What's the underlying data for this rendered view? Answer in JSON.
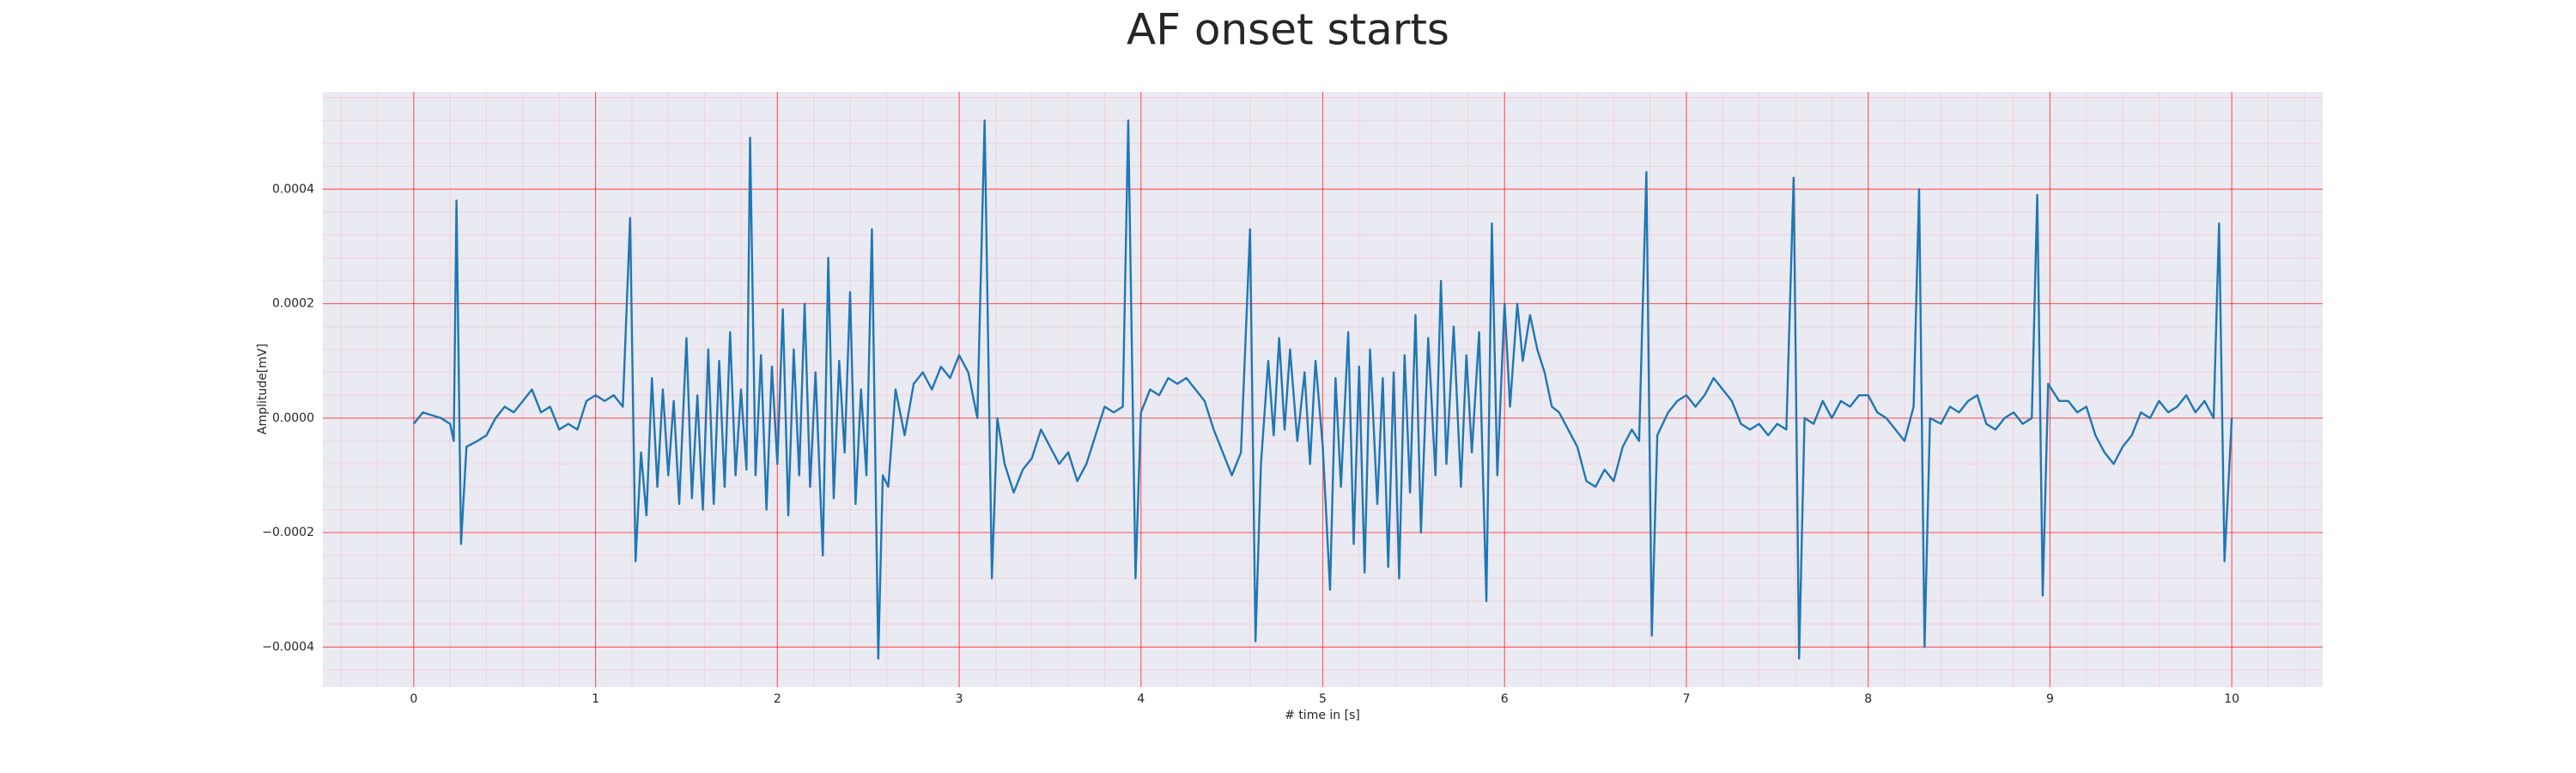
{
  "chart_data": {
    "type": "line",
    "title": "AF onset starts",
    "xlabel": "# time in [s]",
    "ylabel": "Amplitude[mV]",
    "xlim": [
      -0.5,
      10.5
    ],
    "ylim": [
      -0.00047,
      0.00057
    ],
    "xticks": [
      0,
      1,
      2,
      3,
      4,
      5,
      6,
      7,
      8,
      9,
      10
    ],
    "yticks": [
      {
        "value": -0.0004,
        "label": "−0.0004"
      },
      {
        "value": -0.0002,
        "label": "−0.0002"
      },
      {
        "value": 0,
        "label": "0.0000"
      },
      0.0002,
      0.0004
    ],
    "grid": true,
    "minor_grid": true,
    "series": [
      {
        "color": "#1f77b4",
        "x": [
          0,
          0.05,
          0.1,
          0.15,
          0.2,
          0.22,
          0.235,
          0.26,
          0.29,
          0.35,
          0.4,
          0.45,
          0.5,
          0.55,
          0.6,
          0.65,
          0.7,
          0.75,
          0.8,
          0.85,
          0.9,
          0.95,
          1.0,
          1.05,
          1.1,
          1.15,
          1.19,
          1.22,
          1.25,
          1.28,
          1.31,
          1.34,
          1.37,
          1.4,
          1.43,
          1.46,
          1.5,
          1.53,
          1.56,
          1.59,
          1.62,
          1.65,
          1.68,
          1.71,
          1.74,
          1.77,
          1.8,
          1.83,
          1.85,
          1.88,
          1.91,
          1.94,
          1.97,
          2.0,
          2.03,
          2.06,
          2.09,
          2.12,
          2.15,
          2.18,
          2.21,
          2.25,
          2.28,
          2.31,
          2.34,
          2.37,
          2.4,
          2.43,
          2.46,
          2.49,
          2.52,
          2.555,
          2.58,
          2.61,
          2.65,
          2.7,
          2.75,
          2.8,
          2.85,
          2.9,
          2.95,
          3.0,
          3.05,
          3.1,
          3.14,
          3.18,
          3.21,
          3.25,
          3.3,
          3.35,
          3.4,
          3.45,
          3.5,
          3.55,
          3.6,
          3.65,
          3.7,
          3.75,
          3.8,
          3.85,
          3.9,
          3.93,
          3.97,
          4.0,
          4.05,
          4.1,
          4.15,
          4.2,
          4.25,
          4.3,
          4.35,
          4.4,
          4.45,
          4.5,
          4.55,
          4.6,
          4.63,
          4.66,
          4.7,
          4.73,
          4.76,
          4.79,
          4.82,
          4.86,
          4.9,
          4.93,
          4.96,
          5.0,
          5.04,
          5.07,
          5.1,
          5.14,
          5.17,
          5.2,
          5.23,
          5.26,
          5.3,
          5.33,
          5.36,
          5.39,
          5.42,
          5.45,
          5.48,
          5.51,
          5.54,
          5.58,
          5.62,
          5.65,
          5.68,
          5.72,
          5.76,
          5.79,
          5.82,
          5.86,
          5.9,
          5.93,
          5.96,
          6.0,
          6.03,
          6.07,
          6.1,
          6.14,
          6.18,
          6.22,
          6.26,
          6.3,
          6.35,
          6.4,
          6.45,
          6.5,
          6.55,
          6.6,
          6.65,
          6.7,
          6.74,
          6.78,
          6.81,
          6.84,
          6.9,
          6.95,
          7.0,
          7.05,
          7.1,
          7.15,
          7.2,
          7.25,
          7.3,
          7.35,
          7.4,
          7.45,
          7.5,
          7.55,
          7.59,
          7.62,
          7.65,
          7.7,
          7.75,
          7.8,
          7.85,
          7.9,
          7.95,
          8.0,
          8.05,
          8.1,
          8.15,
          8.2,
          8.25,
          8.28,
          8.31,
          8.34,
          8.4,
          8.45,
          8.5,
          8.55,
          8.6,
          8.65,
          8.7,
          8.75,
          8.8,
          8.85,
          8.9,
          8.93,
          8.96,
          8.99,
          9.05,
          9.1,
          9.15,
          9.2,
          9.25,
          9.3,
          9.35,
          9.4,
          9.45,
          9.5,
          9.55,
          9.6,
          9.65,
          9.7,
          9.75,
          9.8,
          9.85,
          9.9,
          9.93,
          9.96,
          10.0
        ],
        "values": [
          -1e-05,
          1e-05,
          5e-06,
          0,
          -1e-05,
          -4e-05,
          0.00038,
          -0.00022,
          -5e-05,
          -4e-05,
          -3e-05,
          0,
          2e-05,
          1e-05,
          3e-05,
          5e-05,
          1e-05,
          2e-05,
          -2e-05,
          -1e-05,
          -2e-05,
          3e-05,
          4e-05,
          3e-05,
          4e-05,
          2e-05,
          0.00035,
          -0.00025,
          -6e-05,
          -0.00017,
          7e-05,
          -0.00012,
          5e-05,
          -0.0001,
          3e-05,
          -0.00015,
          0.00014,
          -0.00014,
          4e-05,
          -0.00016,
          0.00012,
          -0.00015,
          0.0001,
          -0.00012,
          0.00015,
          -0.0001,
          5e-05,
          -9e-05,
          0.00049,
          -0.0001,
          0.00011,
          -0.00016,
          9e-05,
          -8e-05,
          0.00019,
          -0.00017,
          0.00012,
          -0.0001,
          0.0002,
          -0.00012,
          8e-05,
          -0.00024,
          0.00028,
          -0.00014,
          0.0001,
          -6e-05,
          0.00022,
          -0.00015,
          5e-05,
          -0.0001,
          0.00033,
          -0.00042,
          -0.0001,
          -0.00012,
          5e-05,
          -3e-05,
          6e-05,
          8e-05,
          5e-05,
          9e-05,
          7e-05,
          0.00011,
          8e-05,
          0,
          0.00052,
          -0.00028,
          0,
          -8e-05,
          -0.00013,
          -9e-05,
          -7e-05,
          -2e-05,
          -5e-05,
          -8e-05,
          -6e-05,
          -0.00011,
          -8e-05,
          -3e-05,
          2e-05,
          1e-05,
          2e-05,
          0.00052,
          -0.00028,
          1e-05,
          5e-05,
          4e-05,
          7e-05,
          6e-05,
          7e-05,
          5e-05,
          3e-05,
          -2e-05,
          -6e-05,
          -0.0001,
          -6e-05,
          0.00033,
          -0.00039,
          -8e-05,
          0.0001,
          -3e-05,
          0.00014,
          -2e-05,
          0.00012,
          -4e-05,
          8e-05,
          -8e-05,
          0.0001,
          -5e-05,
          -0.0003,
          7e-05,
          -0.00012,
          0.00015,
          -0.00022,
          9e-05,
          -0.00027,
          0.00012,
          -0.00015,
          7e-05,
          -0.00026,
          8e-05,
          -0.00028,
          0.00011,
          -0.00013,
          0.00018,
          -0.0002,
          0.00014,
          -0.0001,
          0.00024,
          -8e-05,
          0.00016,
          -0.00012,
          0.00011,
          -6e-05,
          0.00015,
          -0.00032,
          0.00034,
          -0.0001,
          0.0002,
          2e-05,
          0.0002,
          0.0001,
          0.00018,
          0.00012,
          8e-05,
          2e-05,
          1e-05,
          -2e-05,
          -5e-05,
          -0.00011,
          -0.00012,
          -9e-05,
          -0.00011,
          -5e-05,
          -2e-05,
          -4e-05,
          0.00043,
          -0.00038,
          -3e-05,
          1e-05,
          3e-05,
          4e-05,
          2e-05,
          4e-05,
          7e-05,
          5e-05,
          3e-05,
          -1e-05,
          -2e-05,
          -1e-05,
          -3e-05,
          -1e-05,
          -2e-05,
          0.00042,
          -0.00042,
          0,
          -1e-05,
          3e-05,
          0,
          3e-05,
          2e-05,
          4e-05,
          4e-05,
          1e-05,
          0,
          -2e-05,
          -4e-05,
          2e-05,
          0.0004,
          -0.0004,
          0,
          -1e-05,
          2e-05,
          1e-05,
          3e-05,
          4e-05,
          -1e-05,
          -2e-05,
          0,
          1e-05,
          -1e-05,
          0,
          0.00039,
          -0.00031,
          6e-05,
          3e-05,
          3e-05,
          1e-05,
          2e-05,
          -3e-05,
          -6e-05,
          -8e-05,
          -5e-05,
          -3e-05,
          1e-05,
          0,
          3e-05,
          1e-05,
          2e-05,
          4e-05,
          1e-05,
          3e-05,
          0,
          0.00034,
          -0.00025,
          0
        ]
      }
    ]
  }
}
